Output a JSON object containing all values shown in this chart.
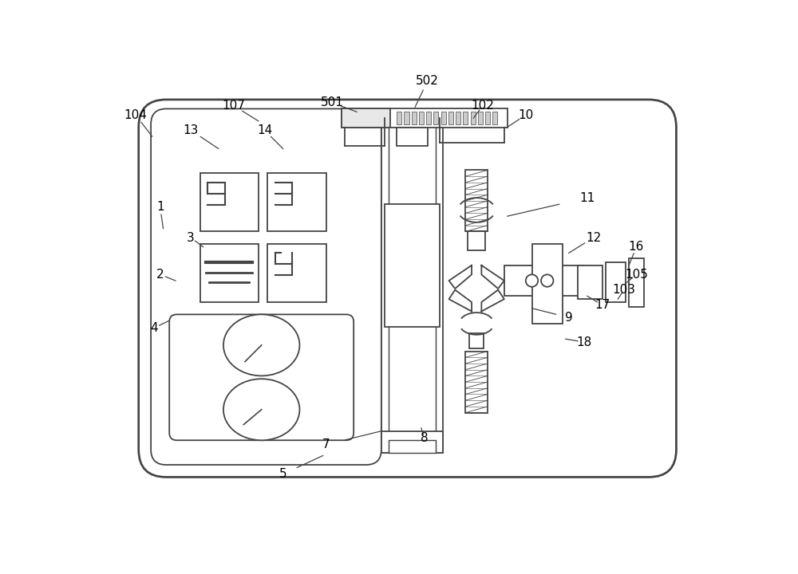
{
  "bg_color": "#ffffff",
  "lc": "#444444",
  "lw": 1.3,
  "fig_w": 10.0,
  "fig_h": 7.2,
  "dpi": 100
}
